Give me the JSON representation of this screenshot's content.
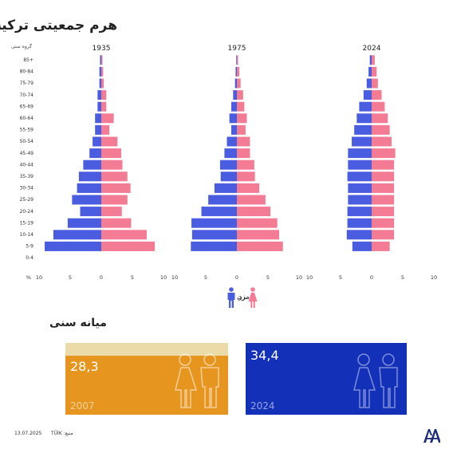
{
  "title": "هرم جمعیتی ترکیه",
  "age_axis_header": "گروه سنی",
  "percent_label": "%",
  "legend": {
    "male": "مرد",
    "female": "زن"
  },
  "colors": {
    "male": "#4a5de0",
    "female": "#f47b94",
    "card_2007": "#e6961e",
    "card_2007_top": "#eadba9",
    "card_2024": "#1330b8"
  },
  "chart_data": [
    {
      "type": "bar",
      "orientation": "horizontal-population-pyramid",
      "title": "1935",
      "categories": [
        "85+",
        "80-84",
        "75-79",
        "70-74",
        "65-69",
        "60-64",
        "55-59",
        "50-54",
        "45-49",
        "40-44",
        "35-39",
        "30-34",
        "25-29",
        "20-24",
        "15-19",
        "10-14",
        "5-9",
        "0-4"
      ],
      "series": [
        {
          "name": "مرد",
          "values": [
            0.2,
            0.3,
            0.3,
            0.6,
            0.6,
            1.0,
            1.0,
            1.4,
            1.9,
            2.9,
            3.6,
            3.9,
            4.7,
            3.4,
            5.4,
            7.7,
            9.1,
            0
          ]
        },
        {
          "name": "زن",
          "values": [
            0.2,
            0.3,
            0.4,
            0.8,
            0.8,
            2.0,
            1.3,
            2.6,
            3.2,
            3.4,
            4.2,
            4.7,
            4.2,
            3.3,
            4.8,
            7.3,
            8.6,
            0
          ]
        }
      ],
      "xlim": [
        -10,
        10
      ],
      "xticks": [
        "10",
        "5",
        "0",
        "5",
        "10"
      ]
    },
    {
      "type": "bar",
      "orientation": "horizontal-population-pyramid",
      "title": "1975",
      "categories": [
        "85+",
        "80-84",
        "75-79",
        "70-74",
        "65-69",
        "60-64",
        "55-59",
        "50-54",
        "45-49",
        "40-44",
        "35-39",
        "30-34",
        "25-29",
        "20-24",
        "15-19",
        "10-14",
        "5-9",
        "0-4"
      ],
      "series": [
        {
          "name": "مرد",
          "values": [
            0.1,
            0.2,
            0.3,
            0.6,
            0.9,
            1.2,
            0.9,
            1.6,
            2.0,
            2.7,
            2.6,
            3.6,
            4.6,
            5.7,
            7.3,
            7.2,
            7.4,
            0
          ]
        },
        {
          "name": "زن",
          "values": [
            0.2,
            0.4,
            0.6,
            1.0,
            1.2,
            1.6,
            1.4,
            2.1,
            2.1,
            2.8,
            2.9,
            3.6,
            4.6,
            5.4,
            6.5,
            6.8,
            7.4,
            0
          ]
        }
      ],
      "xlim": [
        -10,
        10
      ],
      "xticks": [
        "10",
        "5",
        "0",
        "5",
        "10"
      ]
    },
    {
      "type": "bar",
      "orientation": "horizontal-population-pyramid",
      "title": "2024",
      "categories": [
        "85+",
        "80-84",
        "75-79",
        "70-74",
        "65-69",
        "60-64",
        "55-59",
        "50-54",
        "45-49",
        "40-44",
        "35-39",
        "30-34",
        "25-29",
        "20-24",
        "15-19",
        "10-14",
        "5-9",
        "0-4"
      ],
      "series": [
        {
          "name": "مرد",
          "values": [
            0.3,
            0.5,
            0.8,
            1.3,
            2.0,
            2.4,
            2.8,
            3.2,
            3.8,
            3.8,
            3.9,
            3.8,
            3.8,
            3.9,
            3.9,
            4.0,
            3.1,
            0
          ]
        },
        {
          "name": "زن",
          "values": [
            0.5,
            0.8,
            1.0,
            1.6,
            2.1,
            2.6,
            2.9,
            3.2,
            3.8,
            3.6,
            3.6,
            3.6,
            3.6,
            3.6,
            3.6,
            3.6,
            2.9,
            0
          ]
        }
      ],
      "xlim": [
        -10,
        10
      ],
      "xticks": [
        "10",
        "5",
        "0",
        "5",
        "10"
      ]
    }
  ],
  "median_age": {
    "title": "میانه سنی",
    "cards": [
      {
        "year": "2007",
        "value": "28,3"
      },
      {
        "year": "2024",
        "value": "34,4"
      }
    ]
  },
  "footer": {
    "date": "13.07.2025",
    "source": "منبع: TÜİK"
  }
}
